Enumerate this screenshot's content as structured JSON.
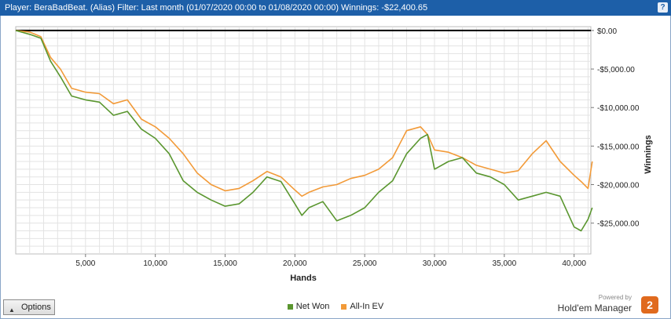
{
  "header": {
    "title": "Player: BeraBadBeat. (Alias) Filter: Last month (01/07/2020 00:00 to 01/08/2020 00:00) Winnings: -$22,400.65",
    "help_label": "?"
  },
  "options_label": "Options",
  "brand": {
    "powered_by": "Powered by",
    "name": "Hold'em Manager",
    "badge": "2"
  },
  "colors": {
    "net_won": "#5a962f",
    "all_in_ev": "#f29a38",
    "zero_line": "#000000",
    "grid": "#e3e3e3"
  },
  "chart_data": {
    "type": "line",
    "xlabel": "Hands",
    "ylabel": "Winnings",
    "xlim": [
      0,
      41200
    ],
    "ylim": [
      -29000,
      500
    ],
    "x_ticks": [
      5000,
      10000,
      15000,
      20000,
      25000,
      30000,
      35000,
      40000
    ],
    "x_tick_labels": [
      "5,000",
      "10,000",
      "15,000",
      "20,000",
      "25,000",
      "30,000",
      "35,000",
      "40,000"
    ],
    "y_ticks": [
      0,
      -5000,
      -10000,
      -15000,
      -20000,
      -25000
    ],
    "y_tick_labels": [
      "$0.00",
      "-$5,000.00",
      "-$10,000.00",
      "-$15,000.00",
      "-$20,000.00",
      "-$25,000.00"
    ],
    "legend_position": "bottom",
    "grid": true,
    "series": [
      {
        "name": "Net Won",
        "x": [
          0,
          1000,
          1800,
          2500,
          3200,
          4000,
          5000,
          6000,
          7000,
          8000,
          9000,
          10000,
          11000,
          12000,
          13000,
          14000,
          15000,
          16000,
          17000,
          18000,
          19000,
          20000,
          20500,
          21000,
          22000,
          23000,
          24000,
          25000,
          26000,
          27000,
          28000,
          29000,
          29500,
          30000,
          31000,
          32000,
          33000,
          34000,
          35000,
          36000,
          37000,
          38000,
          39000,
          40000,
          40500,
          41000,
          41300
        ],
        "y": [
          0,
          -500,
          -1000,
          -4000,
          -6000,
          -8500,
          -9000,
          -9300,
          -11000,
          -10500,
          -12800,
          -14000,
          -16000,
          -19500,
          -21000,
          -22000,
          -22800,
          -22500,
          -21000,
          -19000,
          -19600,
          -22500,
          -24000,
          -23000,
          -22200,
          -24700,
          -24000,
          -23000,
          -21000,
          -19500,
          -16000,
          -14000,
          -13500,
          -18000,
          -17000,
          -16500,
          -18500,
          -19000,
          -20000,
          -22000,
          -21500,
          -21000,
          -21500,
          -25500,
          -26000,
          -24500,
          -23000
        ]
      },
      {
        "name": "All-In EV",
        "x": [
          0,
          1000,
          1800,
          2500,
          3200,
          4000,
          5000,
          6000,
          7000,
          8000,
          9000,
          10000,
          11000,
          12000,
          13000,
          14000,
          15000,
          16000,
          17000,
          18000,
          19000,
          20000,
          20500,
          21000,
          22000,
          23000,
          24000,
          25000,
          26000,
          27000,
          28000,
          29000,
          29500,
          30000,
          31000,
          32000,
          33000,
          34000,
          35000,
          36000,
          37000,
          38000,
          39000,
          40000,
          40500,
          41000,
          41300
        ],
        "y": [
          0,
          -200,
          -800,
          -3500,
          -5000,
          -7500,
          -8000,
          -8200,
          -9500,
          -9000,
          -11500,
          -12500,
          -14000,
          -16000,
          -18500,
          -20000,
          -20800,
          -20500,
          -19500,
          -18300,
          -19000,
          -20700,
          -21500,
          -21000,
          -20300,
          -20000,
          -19200,
          -18800,
          -18000,
          -16500,
          -13000,
          -12500,
          -13500,
          -15500,
          -15800,
          -16500,
          -17500,
          -18000,
          -18500,
          -18200,
          -16000,
          -14300,
          -17000,
          -18800,
          -19600,
          -20500,
          -17000
        ]
      }
    ]
  }
}
